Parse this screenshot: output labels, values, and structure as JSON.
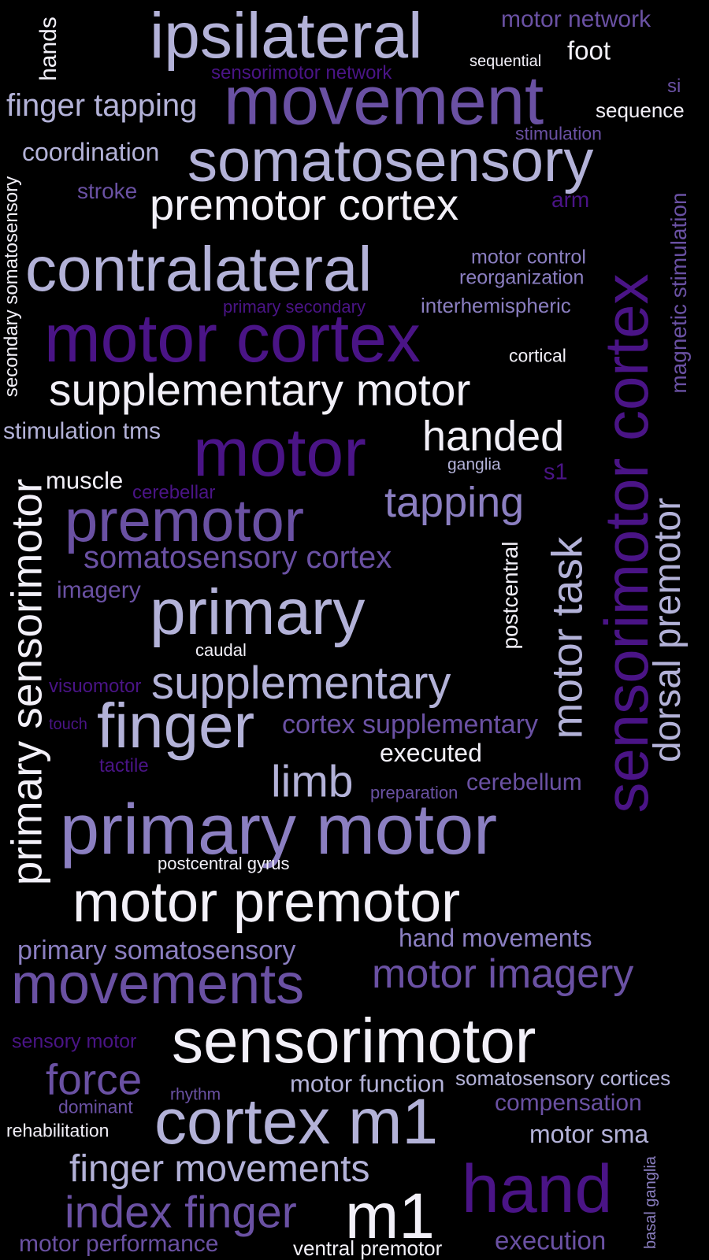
{
  "colors": {
    "background": "#000000",
    "white": "#f2f0f8",
    "lavender": "#b3b2d8",
    "mid_purple": "#8b7fc1",
    "violet": "#6a51a3",
    "deep_purple": "#4a1486"
  },
  "words": [
    {
      "id": "ipsilateral",
      "text": "ipsilateral",
      "color": "#b3b2d8"
    },
    {
      "id": "motor-network",
      "text": "motor network",
      "color": "#6a51a3"
    },
    {
      "id": "hands",
      "text": "hands",
      "color": "#f2f0f8"
    },
    {
      "id": "foot",
      "text": "foot",
      "color": "#f2f0f8"
    },
    {
      "id": "sequential",
      "text": "sequential",
      "color": "#f2f0f8"
    },
    {
      "id": "sensorimotor-network",
      "text": "sensorimotor network",
      "color": "#4a1486"
    },
    {
      "id": "finger-tapping",
      "text": "finger tapping",
      "color": "#b3b2d8"
    },
    {
      "id": "movement",
      "text": "movement",
      "color": "#6a51a3"
    },
    {
      "id": "si",
      "text": "si",
      "color": "#6a51a3"
    },
    {
      "id": "sequence",
      "text": "sequence",
      "color": "#f2f0f8"
    },
    {
      "id": "stimulation",
      "text": "stimulation",
      "color": "#6a51a3"
    },
    {
      "id": "coordination",
      "text": "coordination",
      "color": "#b3b2d8"
    },
    {
      "id": "somatosensory",
      "text": "somatosensory",
      "color": "#b3b2d8"
    },
    {
      "id": "secondary-somatosensory",
      "text": "secondary somatosensory",
      "color": "#f2f0f8"
    },
    {
      "id": "stroke",
      "text": "stroke",
      "color": "#6a51a3"
    },
    {
      "id": "premotor-cortex",
      "text": "premotor cortex",
      "color": "#f2f0f8"
    },
    {
      "id": "arm",
      "text": "arm",
      "color": "#4a1486"
    },
    {
      "id": "magnetic-stimulation",
      "text": "magnetic stimulation",
      "color": "#6a51a3"
    },
    {
      "id": "contralateral",
      "text": "contralateral",
      "color": "#b3b2d8"
    },
    {
      "id": "motor-control",
      "text": "motor control",
      "color": "#8b7fc1"
    },
    {
      "id": "reorganization",
      "text": "reorganization",
      "color": "#8b7fc1"
    },
    {
      "id": "primary-secondary",
      "text": "primary secondary",
      "color": "#4a1486"
    },
    {
      "id": "interhemispheric",
      "text": "interhemispheric",
      "color": "#8b7fc1"
    },
    {
      "id": "sensorimotor-cortex",
      "text": "sensorimotor cortex",
      "color": "#4a1486"
    },
    {
      "id": "motor-cortex",
      "text": "motor cortex",
      "color": "#4a1486"
    },
    {
      "id": "cortical",
      "text": "cortical",
      "color": "#f2f0f8"
    },
    {
      "id": "supplementary-motor",
      "text": "supplementary motor",
      "color": "#f2f0f8"
    },
    {
      "id": "stimulation-tms",
      "text": "stimulation tms",
      "color": "#b3b2d8"
    },
    {
      "id": "motor",
      "text": "motor",
      "color": "#4a1486"
    },
    {
      "id": "handed",
      "text": "handed",
      "color": "#f2f0f8"
    },
    {
      "id": "ganglia",
      "text": "ganglia",
      "color": "#b3b2d8"
    },
    {
      "id": "s1",
      "text": "s1",
      "color": "#4a1486"
    },
    {
      "id": "muscle",
      "text": "muscle",
      "color": "#f2f0f8"
    },
    {
      "id": "primary-sensorimotor",
      "text": "primary sensorimotor",
      "color": "#f2f0f8"
    },
    {
      "id": "cerebellar",
      "text": "cerebellar",
      "color": "#4a1486"
    },
    {
      "id": "dorsal-premotor",
      "text": "dorsal premotor",
      "color": "#b3b2d8"
    },
    {
      "id": "tapping",
      "text": "tapping",
      "color": "#8b7fc1"
    },
    {
      "id": "premotor",
      "text": "premotor",
      "color": "#6a51a3"
    },
    {
      "id": "motor-task",
      "text": "motor task",
      "color": "#b3b2d8"
    },
    {
      "id": "somatosensory-cortex",
      "text": "somatosensory cortex",
      "color": "#6a51a3"
    },
    {
      "id": "postcentral",
      "text": "postcentral",
      "color": "#f2f0f8"
    },
    {
      "id": "imagery",
      "text": "imagery",
      "color": "#6a51a3"
    },
    {
      "id": "primary",
      "text": "primary",
      "color": "#b3b2d8"
    },
    {
      "id": "caudal",
      "text": "caudal",
      "color": "#f2f0f8"
    },
    {
      "id": "supplementary",
      "text": "supplementary",
      "color": "#b3b2d8"
    },
    {
      "id": "visuomotor",
      "text": "visuomotor",
      "color": "#4a1486"
    },
    {
      "id": "finger",
      "text": "finger",
      "color": "#b3b2d8"
    },
    {
      "id": "touch",
      "text": "touch",
      "color": "#4a1486"
    },
    {
      "id": "cortex-supplementary",
      "text": "cortex supplementary",
      "color": "#6a51a3"
    },
    {
      "id": "executed",
      "text": "executed",
      "color": "#f2f0f8"
    },
    {
      "id": "tactile",
      "text": "tactile",
      "color": "#4a1486"
    },
    {
      "id": "limb",
      "text": "limb",
      "color": "#b3b2d8"
    },
    {
      "id": "preparation",
      "text": "preparation",
      "color": "#6a51a3"
    },
    {
      "id": "cerebellum",
      "text": "cerebellum",
      "color": "#6a51a3"
    },
    {
      "id": "primary-motor",
      "text": "primary motor",
      "color": "#8b7fc1"
    },
    {
      "id": "postcentral-gyrus",
      "text": "postcentral gyrus",
      "color": "#f2f0f8"
    },
    {
      "id": "motor-premotor",
      "text": "motor premotor",
      "color": "#f2f0f8"
    },
    {
      "id": "hand-movements",
      "text": "hand movements",
      "color": "#8b7fc1"
    },
    {
      "id": "primary-somatosensory",
      "text": "primary somatosensory",
      "color": "#8b7fc1"
    },
    {
      "id": "motor-imagery",
      "text": "motor imagery",
      "color": "#6a51a3"
    },
    {
      "id": "movements",
      "text": "movements",
      "color": "#6a51a3"
    },
    {
      "id": "sensorimotor",
      "text": "sensorimotor",
      "color": "#f2f0f8"
    },
    {
      "id": "sensory-motor",
      "text": "sensory motor",
      "color": "#4a1486"
    },
    {
      "id": "force",
      "text": "force",
      "color": "#6a51a3"
    },
    {
      "id": "rhythm",
      "text": "rhythm",
      "color": "#6a51a3"
    },
    {
      "id": "motor-function",
      "text": "motor function",
      "color": "#b3b2d8"
    },
    {
      "id": "somatosensory-cortices",
      "text": "somatosensory cortices",
      "color": "#b3b2d8"
    },
    {
      "id": "compensation",
      "text": "compensation",
      "color": "#6a51a3"
    },
    {
      "id": "dominant",
      "text": "dominant",
      "color": "#6a51a3"
    },
    {
      "id": "cortex-m1",
      "text": "cortex m1",
      "color": "#b3b2d8"
    },
    {
      "id": "rehabilitation",
      "text": "rehabilitation",
      "color": "#f2f0f8"
    },
    {
      "id": "motor-sma",
      "text": "motor sma",
      "color": "#b3b2d8"
    },
    {
      "id": "finger-movements",
      "text": "finger movements",
      "color": "#b3b2d8"
    },
    {
      "id": "hand",
      "text": "hand",
      "color": "#4a1486"
    },
    {
      "id": "basal-ganglia",
      "text": "basal ganglia",
      "color": "#8b7fc1"
    },
    {
      "id": "index-finger",
      "text": "index finger",
      "color": "#6a51a3"
    },
    {
      "id": "m1",
      "text": "m1",
      "color": "#f2f0f8"
    },
    {
      "id": "motor-performance",
      "text": "motor performance",
      "color": "#6a51a3"
    },
    {
      "id": "ventral-premotor",
      "text": "ventral premotor",
      "color": "#f2f0f8"
    },
    {
      "id": "execution",
      "text": "execution",
      "color": "#6a51a3"
    }
  ]
}
